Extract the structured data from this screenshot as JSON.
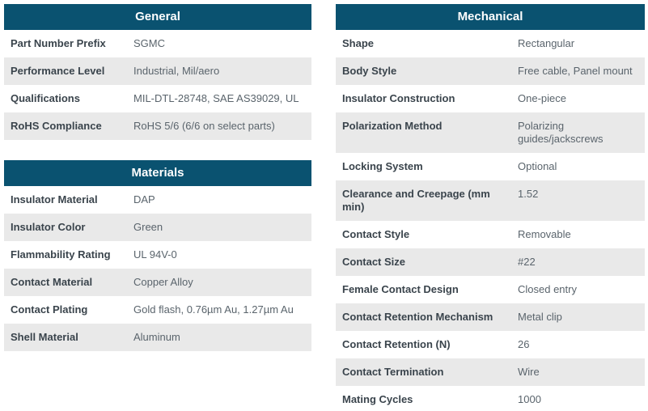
{
  "colors": {
    "header_bg": "#0a5270",
    "header_text": "#ffffff",
    "row_alt_bg": "#e9e9e9",
    "row_bg": "#ffffff",
    "label_text": "#3a444c",
    "value_text": "#5a646c"
  },
  "tables": {
    "general": {
      "title": "General",
      "rows": [
        {
          "label": "Part Number Prefix",
          "value": "SGMC"
        },
        {
          "label": "Performance Level",
          "value": "Industrial, Mil/aero"
        },
        {
          "label": "Qualifications",
          "value": "MIL-DTL-28748, SAE AS39029, UL"
        },
        {
          "label": "RoHS Compliance",
          "value": "RoHS 5/6 (6/6 on select parts)"
        }
      ]
    },
    "materials": {
      "title": "Materials",
      "rows": [
        {
          "label": "Insulator Material",
          "value": "DAP"
        },
        {
          "label": "Insulator Color",
          "value": "Green"
        },
        {
          "label": "Flammability Rating",
          "value": "UL 94V-0"
        },
        {
          "label": "Contact Material",
          "value": "Copper Alloy"
        },
        {
          "label": "Contact Plating",
          "value": "Gold flash, 0.76µm Au, 1.27µm Au"
        },
        {
          "label": "Shell Material",
          "value": "Aluminum"
        }
      ]
    },
    "mechanical": {
      "title": "Mechanical",
      "rows": [
        {
          "label": "Shape",
          "value": "Rectangular"
        },
        {
          "label": "Body Style",
          "value": "Free cable, Panel mount"
        },
        {
          "label": "Insulator Construction",
          "value": "One-piece"
        },
        {
          "label": "Polarization Method",
          "value": "Polarizing guides/jackscrews"
        },
        {
          "label": "Locking System",
          "value": "Optional"
        },
        {
          "label": "Clearance and Creepage (mm min)",
          "value": "1.52"
        },
        {
          "label": "Contact Style",
          "value": "Removable"
        },
        {
          "label": "Contact Size",
          "value": "#22"
        },
        {
          "label": "Female Contact Design",
          "value": "Closed entry"
        },
        {
          "label": "Contact Retention Mechanism",
          "value": "Metal clip"
        },
        {
          "label": "Contact Retention (N)",
          "value": "26"
        },
        {
          "label": "Contact Termination",
          "value": "Wire"
        },
        {
          "label": "Mating Cycles",
          "value": "1000"
        }
      ]
    }
  }
}
